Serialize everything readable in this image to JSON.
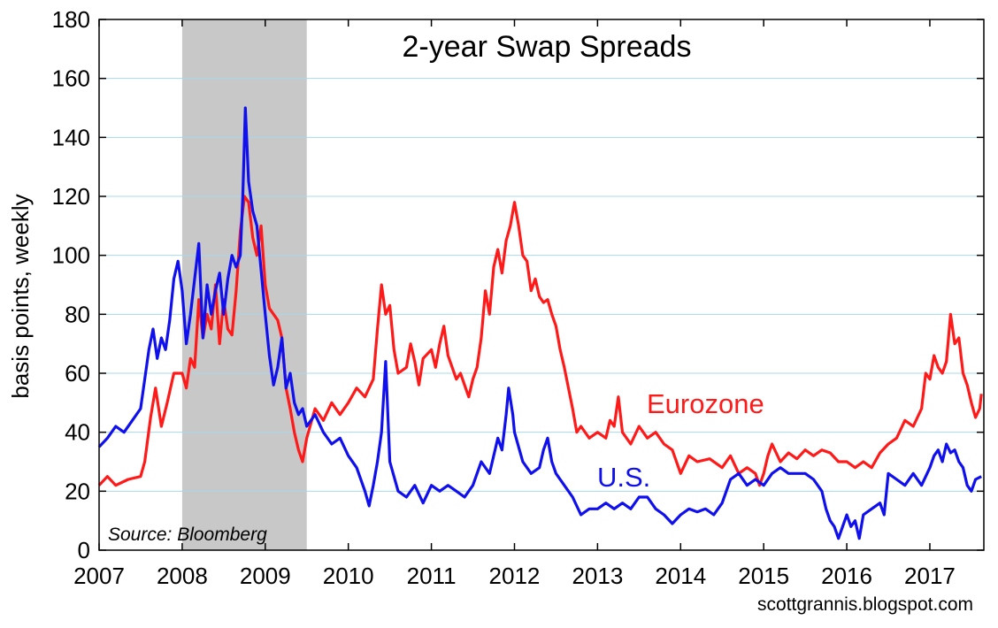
{
  "chart_data": {
    "type": "line",
    "title": "2-year Swap Spreads",
    "xlabel": "",
    "ylabel": "basis points, weekly",
    "ylim": [
      0,
      180
    ],
    "xlim": [
      2007,
      2017.65
    ],
    "yticks": [
      0,
      20,
      40,
      60,
      80,
      100,
      120,
      140,
      160,
      180
    ],
    "xticks": [
      "2007",
      "2008",
      "2009",
      "2010",
      "2011",
      "2012",
      "2013",
      "2014",
      "2015",
      "2016",
      "2017"
    ],
    "grid": true,
    "recession_band": {
      "start": 2008.0,
      "end": 2009.5,
      "color": "#c8c8c8"
    },
    "source": "Source: Bloomberg",
    "credit": "scottgrannis.blogspot.com",
    "series": [
      {
        "name": "Eurozone",
        "color": "#ff1a1a",
        "points": [
          [
            2007.0,
            22
          ],
          [
            2007.1,
            25
          ],
          [
            2007.2,
            22
          ],
          [
            2007.35,
            24
          ],
          [
            2007.5,
            25
          ],
          [
            2007.55,
            30
          ],
          [
            2007.62,
            45
          ],
          [
            2007.68,
            55
          ],
          [
            2007.75,
            42
          ],
          [
            2007.82,
            50
          ],
          [
            2007.9,
            60
          ],
          [
            2008.0,
            60
          ],
          [
            2008.05,
            55
          ],
          [
            2008.1,
            65
          ],
          [
            2008.15,
            62
          ],
          [
            2008.2,
            85
          ],
          [
            2008.25,
            72
          ],
          [
            2008.3,
            80
          ],
          [
            2008.35,
            75
          ],
          [
            2008.4,
            90
          ],
          [
            2008.45,
            70
          ],
          [
            2008.5,
            85
          ],
          [
            2008.55,
            75
          ],
          [
            2008.6,
            73
          ],
          [
            2008.65,
            88
          ],
          [
            2008.7,
            108
          ],
          [
            2008.75,
            120
          ],
          [
            2008.8,
            118
          ],
          [
            2008.85,
            106
          ],
          [
            2008.9,
            100
          ],
          [
            2008.95,
            110
          ],
          [
            2009.0,
            90
          ],
          [
            2009.05,
            82
          ],
          [
            2009.1,
            80
          ],
          [
            2009.15,
            78
          ],
          [
            2009.2,
            72
          ],
          [
            2009.25,
            55
          ],
          [
            2009.3,
            48
          ],
          [
            2009.35,
            40
          ],
          [
            2009.4,
            34
          ],
          [
            2009.45,
            30
          ],
          [
            2009.5,
            38
          ],
          [
            2009.6,
            48
          ],
          [
            2009.7,
            44
          ],
          [
            2009.8,
            50
          ],
          [
            2009.9,
            46
          ],
          [
            2010.0,
            50
          ],
          [
            2010.1,
            55
          ],
          [
            2010.2,
            52
          ],
          [
            2010.3,
            58
          ],
          [
            2010.35,
            75
          ],
          [
            2010.4,
            90
          ],
          [
            2010.45,
            80
          ],
          [
            2010.5,
            83
          ],
          [
            2010.55,
            68
          ],
          [
            2010.6,
            60
          ],
          [
            2010.7,
            62
          ],
          [
            2010.75,
            70
          ],
          [
            2010.8,
            64
          ],
          [
            2010.85,
            56
          ],
          [
            2010.9,
            65
          ],
          [
            2011.0,
            68
          ],
          [
            2011.05,
            62
          ],
          [
            2011.1,
            70
          ],
          [
            2011.15,
            76
          ],
          [
            2011.2,
            66
          ],
          [
            2011.3,
            58
          ],
          [
            2011.35,
            60
          ],
          [
            2011.4,
            56
          ],
          [
            2011.45,
            52
          ],
          [
            2011.5,
            58
          ],
          [
            2011.55,
            62
          ],
          [
            2011.6,
            72
          ],
          [
            2011.65,
            88
          ],
          [
            2011.7,
            80
          ],
          [
            2011.75,
            96
          ],
          [
            2011.8,
            102
          ],
          [
            2011.85,
            94
          ],
          [
            2011.9,
            105
          ],
          [
            2011.95,
            110
          ],
          [
            2012.0,
            118
          ],
          [
            2012.05,
            110
          ],
          [
            2012.1,
            100
          ],
          [
            2012.15,
            98
          ],
          [
            2012.2,
            88
          ],
          [
            2012.25,
            92
          ],
          [
            2012.3,
            86
          ],
          [
            2012.35,
            84
          ],
          [
            2012.4,
            85
          ],
          [
            2012.45,
            80
          ],
          [
            2012.5,
            76
          ],
          [
            2012.55,
            68
          ],
          [
            2012.6,
            62
          ],
          [
            2012.65,
            55
          ],
          [
            2012.7,
            48
          ],
          [
            2012.75,
            40
          ],
          [
            2012.8,
            42
          ],
          [
            2012.9,
            38
          ],
          [
            2013.0,
            40
          ],
          [
            2013.1,
            38
          ],
          [
            2013.15,
            44
          ],
          [
            2013.2,
            42
          ],
          [
            2013.25,
            52
          ],
          [
            2013.3,
            40
          ],
          [
            2013.4,
            36
          ],
          [
            2013.5,
            42
          ],
          [
            2013.6,
            38
          ],
          [
            2013.7,
            40
          ],
          [
            2013.8,
            36
          ],
          [
            2013.9,
            34
          ],
          [
            2014.0,
            26
          ],
          [
            2014.1,
            32
          ],
          [
            2014.2,
            30
          ],
          [
            2014.35,
            31
          ],
          [
            2014.5,
            28
          ],
          [
            2014.55,
            30
          ],
          [
            2014.6,
            32
          ],
          [
            2014.7,
            26
          ],
          [
            2014.8,
            28
          ],
          [
            2014.9,
            26
          ],
          [
            2014.95,
            22
          ],
          [
            2015.0,
            26
          ],
          [
            2015.05,
            32
          ],
          [
            2015.1,
            36
          ],
          [
            2015.2,
            30
          ],
          [
            2015.3,
            33
          ],
          [
            2015.4,
            31
          ],
          [
            2015.5,
            34
          ],
          [
            2015.6,
            32
          ],
          [
            2015.7,
            34
          ],
          [
            2015.8,
            33
          ],
          [
            2015.9,
            30
          ],
          [
            2016.0,
            30
          ],
          [
            2016.1,
            28
          ],
          [
            2016.2,
            30
          ],
          [
            2016.3,
            28
          ],
          [
            2016.4,
            33
          ],
          [
            2016.5,
            36
          ],
          [
            2016.6,
            38
          ],
          [
            2016.7,
            44
          ],
          [
            2016.8,
            42
          ],
          [
            2016.9,
            48
          ],
          [
            2016.95,
            60
          ],
          [
            2017.0,
            58
          ],
          [
            2017.05,
            66
          ],
          [
            2017.1,
            62
          ],
          [
            2017.15,
            60
          ],
          [
            2017.2,
            64
          ],
          [
            2017.25,
            80
          ],
          [
            2017.3,
            70
          ],
          [
            2017.35,
            72
          ],
          [
            2017.4,
            60
          ],
          [
            2017.45,
            56
          ],
          [
            2017.5,
            50
          ],
          [
            2017.55,
            45
          ],
          [
            2017.6,
            48
          ],
          [
            2017.62,
            53
          ]
        ]
      },
      {
        "name": "U.S.",
        "color": "#1010ee",
        "points": [
          [
            2007.0,
            35
          ],
          [
            2007.1,
            38
          ],
          [
            2007.2,
            42
          ],
          [
            2007.3,
            40
          ],
          [
            2007.4,
            44
          ],
          [
            2007.5,
            48
          ],
          [
            2007.55,
            58
          ],
          [
            2007.6,
            68
          ],
          [
            2007.65,
            75
          ],
          [
            2007.7,
            65
          ],
          [
            2007.75,
            72
          ],
          [
            2007.8,
            68
          ],
          [
            2007.85,
            78
          ],
          [
            2007.9,
            92
          ],
          [
            2007.95,
            98
          ],
          [
            2008.0,
            88
          ],
          [
            2008.05,
            70
          ],
          [
            2008.1,
            80
          ],
          [
            2008.15,
            92
          ],
          [
            2008.2,
            104
          ],
          [
            2008.25,
            72
          ],
          [
            2008.3,
            90
          ],
          [
            2008.35,
            80
          ],
          [
            2008.4,
            88
          ],
          [
            2008.45,
            94
          ],
          [
            2008.5,
            80
          ],
          [
            2008.55,
            92
          ],
          [
            2008.6,
            100
          ],
          [
            2008.65,
            96
          ],
          [
            2008.7,
            100
          ],
          [
            2008.73,
            120
          ],
          [
            2008.76,
            150
          ],
          [
            2008.8,
            125
          ],
          [
            2008.85,
            115
          ],
          [
            2008.9,
            110
          ],
          [
            2008.95,
            95
          ],
          [
            2009.0,
            80
          ],
          [
            2009.05,
            66
          ],
          [
            2009.1,
            56
          ],
          [
            2009.15,
            62
          ],
          [
            2009.2,
            72
          ],
          [
            2009.25,
            55
          ],
          [
            2009.3,
            60
          ],
          [
            2009.35,
            50
          ],
          [
            2009.4,
            46
          ],
          [
            2009.45,
            48
          ],
          [
            2009.5,
            42
          ],
          [
            2009.6,
            46
          ],
          [
            2009.7,
            40
          ],
          [
            2009.8,
            36
          ],
          [
            2009.9,
            38
          ],
          [
            2010.0,
            32
          ],
          [
            2010.1,
            28
          ],
          [
            2010.2,
            20
          ],
          [
            2010.25,
            15
          ],
          [
            2010.3,
            22
          ],
          [
            2010.35,
            30
          ],
          [
            2010.4,
            40
          ],
          [
            2010.45,
            64
          ],
          [
            2010.5,
            30
          ],
          [
            2010.6,
            20
          ],
          [
            2010.7,
            18
          ],
          [
            2010.8,
            22
          ],
          [
            2010.9,
            16
          ],
          [
            2011.0,
            22
          ],
          [
            2011.1,
            20
          ],
          [
            2011.2,
            22
          ],
          [
            2011.3,
            20
          ],
          [
            2011.4,
            18
          ],
          [
            2011.5,
            22
          ],
          [
            2011.6,
            30
          ],
          [
            2011.7,
            26
          ],
          [
            2011.8,
            38
          ],
          [
            2011.85,
            34
          ],
          [
            2011.9,
            46
          ],
          [
            2011.93,
            55
          ],
          [
            2011.98,
            46
          ],
          [
            2012.0,
            40
          ],
          [
            2012.1,
            30
          ],
          [
            2012.2,
            26
          ],
          [
            2012.3,
            28
          ],
          [
            2012.35,
            34
          ],
          [
            2012.4,
            38
          ],
          [
            2012.45,
            30
          ],
          [
            2012.5,
            26
          ],
          [
            2012.6,
            22
          ],
          [
            2012.7,
            18
          ],
          [
            2012.8,
            12
          ],
          [
            2012.9,
            14
          ],
          [
            2013.0,
            14
          ],
          [
            2013.1,
            16
          ],
          [
            2013.2,
            14
          ],
          [
            2013.3,
            16
          ],
          [
            2013.4,
            14
          ],
          [
            2013.5,
            18
          ],
          [
            2013.6,
            18
          ],
          [
            2013.7,
            14
          ],
          [
            2013.8,
            12
          ],
          [
            2013.9,
            9
          ],
          [
            2014.0,
            12
          ],
          [
            2014.1,
            14
          ],
          [
            2014.2,
            13
          ],
          [
            2014.3,
            14
          ],
          [
            2014.4,
            12
          ],
          [
            2014.5,
            16
          ],
          [
            2014.6,
            24
          ],
          [
            2014.7,
            26
          ],
          [
            2014.8,
            22
          ],
          [
            2014.9,
            24
          ],
          [
            2015.0,
            22
          ],
          [
            2015.1,
            26
          ],
          [
            2015.2,
            28
          ],
          [
            2015.3,
            26
          ],
          [
            2015.4,
            26
          ],
          [
            2015.5,
            26
          ],
          [
            2015.6,
            24
          ],
          [
            2015.7,
            20
          ],
          [
            2015.75,
            14
          ],
          [
            2015.8,
            10
          ],
          [
            2015.85,
            8
          ],
          [
            2015.9,
            4
          ],
          [
            2015.95,
            8
          ],
          [
            2016.0,
            12
          ],
          [
            2016.05,
            8
          ],
          [
            2016.1,
            10
          ],
          [
            2016.15,
            4
          ],
          [
            2016.2,
            12
          ],
          [
            2016.3,
            14
          ],
          [
            2016.4,
            16
          ],
          [
            2016.45,
            12
          ],
          [
            2016.5,
            26
          ],
          [
            2016.6,
            24
          ],
          [
            2016.7,
            22
          ],
          [
            2016.8,
            26
          ],
          [
            2016.9,
            22
          ],
          [
            2017.0,
            28
          ],
          [
            2017.05,
            32
          ],
          [
            2017.1,
            34
          ],
          [
            2017.15,
            30
          ],
          [
            2017.2,
            36
          ],
          [
            2017.25,
            33
          ],
          [
            2017.3,
            34
          ],
          [
            2017.35,
            30
          ],
          [
            2017.4,
            28
          ],
          [
            2017.45,
            22
          ],
          [
            2017.5,
            20
          ],
          [
            2017.55,
            24
          ],
          [
            2017.62,
            25
          ]
        ]
      }
    ]
  }
}
